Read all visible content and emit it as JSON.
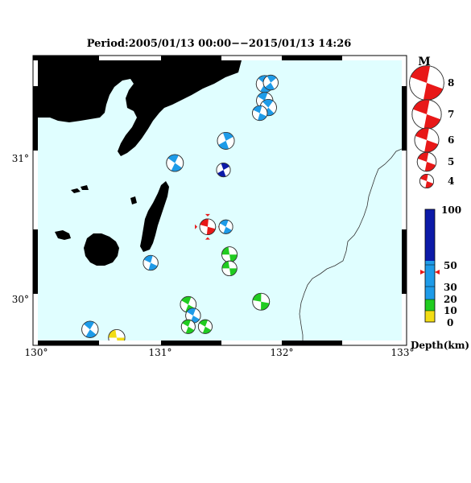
{
  "title": "Period:2005/01/13 00:00−−2015/01/13 14:26",
  "x_ticks": [
    "130°",
    "131°",
    "132°",
    "133°"
  ],
  "y_ticks": [
    "31°",
    "30°"
  ],
  "magnitude_legend": {
    "header": "M",
    "entries": [
      {
        "m": 8,
        "label": "8"
      },
      {
        "m": 7,
        "label": "7"
      },
      {
        "m": 6,
        "label": "6"
      },
      {
        "m": 5,
        "label": "5"
      },
      {
        "m": 4,
        "label": "4"
      }
    ]
  },
  "depth_legend": {
    "ticks": [
      "100",
      "50",
      "30",
      "20",
      "10",
      "0"
    ],
    "label": "Depth(km)",
    "colors": {
      "shallow": "#f2dc14",
      "d10": "#20cc20",
      "d30": "#1e9be8",
      "deep": "#0c1aa8"
    }
  },
  "colors": {
    "sea": "#e0feff",
    "land": "#f6dcb4",
    "coast": "#333333",
    "current_event": "#e81818"
  },
  "chart_data": {
    "type": "map",
    "extent": {
      "lon": [
        130,
        133
      ],
      "lat": [
        29.7,
        31.72
      ]
    },
    "events": [
      {
        "lon": 131.87,
        "lat": 31.55,
        "mag": 4.6,
        "depth": 35,
        "angle": 40
      },
      {
        "lon": 131.92,
        "lat": 31.56,
        "mag": 4.2,
        "depth": 35,
        "angle": 60
      },
      {
        "lon": 131.87,
        "lat": 31.43,
        "mag": 4.5,
        "depth": 35,
        "angle": 30
      },
      {
        "lon": 131.9,
        "lat": 31.38,
        "mag": 4.5,
        "depth": 35,
        "angle": 45
      },
      {
        "lon": 131.83,
        "lat": 31.34,
        "mag": 4.2,
        "depth": 35,
        "angle": 25
      },
      {
        "lon": 131.55,
        "lat": 31.14,
        "mag": 4.6,
        "depth": 35,
        "angle": 70
      },
      {
        "lon": 131.13,
        "lat": 30.98,
        "mag": 4.6,
        "depth": 35,
        "angle": 35
      },
      {
        "lon": 131.53,
        "lat": 30.93,
        "mag": 4.0,
        "depth": 80,
        "angle": 70
      },
      {
        "lon": 131.4,
        "lat": 30.52,
        "mag": 4.4,
        "depth": 35,
        "angle": 15,
        "current": true
      },
      {
        "lon": 131.55,
        "lat": 30.52,
        "mag": 4.0,
        "depth": 35,
        "angle": 30
      },
      {
        "lon": 130.93,
        "lat": 30.26,
        "mag": 4.2,
        "depth": 35,
        "angle": 25
      },
      {
        "lon": 131.58,
        "lat": 30.32,
        "mag": 4.3,
        "depth": 15,
        "angle": 0
      },
      {
        "lon": 131.58,
        "lat": 30.22,
        "mag": 4.2,
        "depth": 15,
        "angle": 0
      },
      {
        "lon": 131.24,
        "lat": 29.96,
        "mag": 4.4,
        "depth": 15,
        "angle": 30
      },
      {
        "lon": 131.84,
        "lat": 29.98,
        "mag": 4.6,
        "depth": 15,
        "angle": 10
      },
      {
        "lon": 131.28,
        "lat": 29.88,
        "mag": 4.2,
        "depth": 35,
        "angle": 30
      },
      {
        "lon": 131.24,
        "lat": 29.8,
        "mag": 4.0,
        "depth": 15,
        "angle": 30
      },
      {
        "lon": 131.38,
        "lat": 29.8,
        "mag": 4.0,
        "depth": 15,
        "angle": 30
      },
      {
        "lon": 130.43,
        "lat": 29.78,
        "mag": 4.5,
        "depth": 35,
        "angle": 40
      },
      {
        "lon": 130.65,
        "lat": 29.72,
        "mag": 4.5,
        "depth": 5,
        "angle": 0
      }
    ]
  }
}
